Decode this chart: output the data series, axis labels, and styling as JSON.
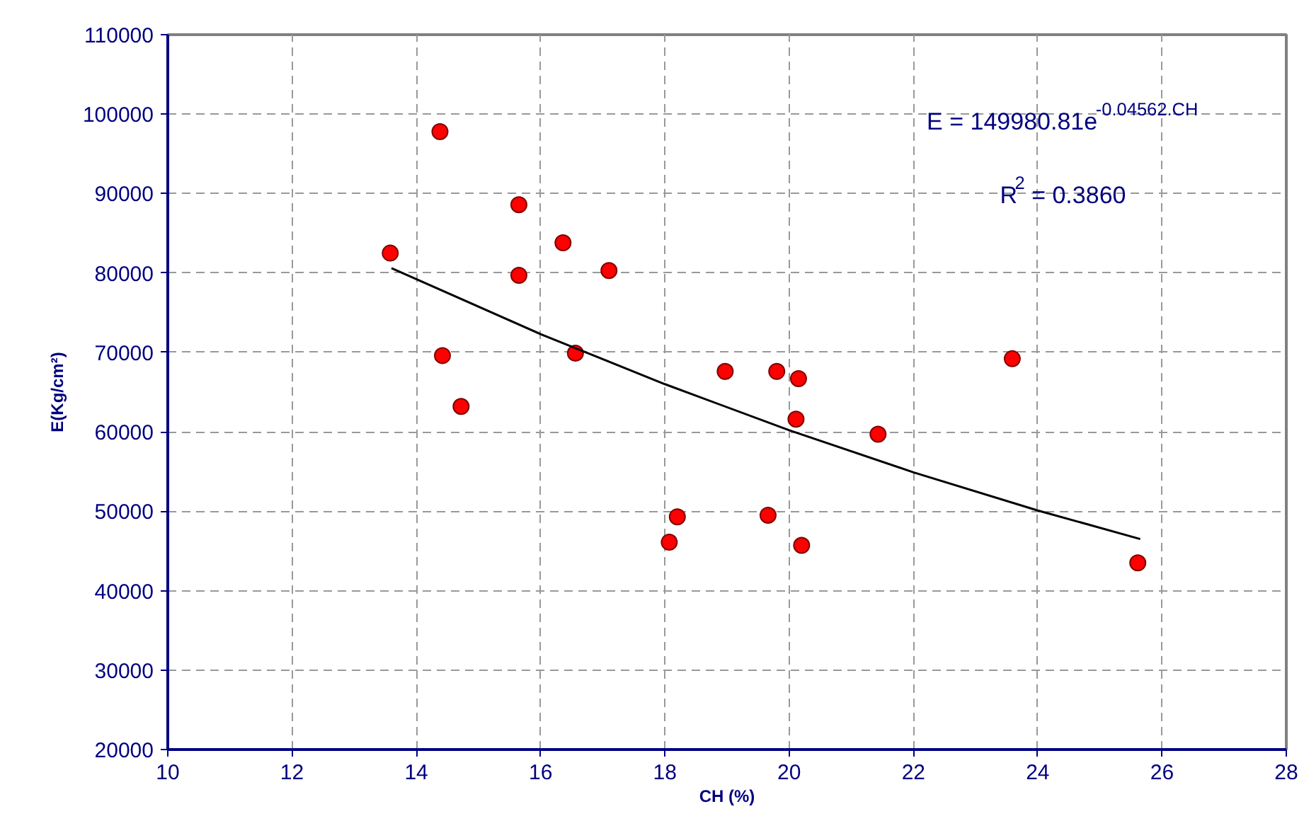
{
  "chart_data": {
    "type": "scatter",
    "xlabel": "CH (%)",
    "ylabel": "E(Kg/cm²)",
    "xlim": [
      10,
      28
    ],
    "ylim": [
      20000,
      110000
    ],
    "xticks": [
      10,
      12,
      14,
      16,
      18,
      20,
      22,
      24,
      26,
      28
    ],
    "yticks": [
      20000,
      30000,
      40000,
      50000,
      60000,
      70000,
      80000,
      90000,
      100000,
      110000
    ],
    "grid": true,
    "marker": "circle",
    "series": [
      {
        "color": "#ff0000",
        "x": [
          13.58,
          14.38,
          15.65,
          16.36,
          15.65,
          17.1,
          14.42,
          16.56,
          14.72,
          18.2,
          18.07,
          18.97,
          19.8,
          20.15,
          20.11,
          21.43,
          19.66,
          20.2,
          23.59,
          25.61
        ],
        "values": [
          82500,
          97800,
          88600,
          83800,
          79700,
          80300,
          69600,
          69900,
          63200,
          49300,
          46100,
          67600,
          67600,
          66700,
          61600,
          59700,
          49500,
          45700,
          69200,
          43500
        ]
      },
      {
        "type": "line",
        "color": "#000000",
        "line_style": "solid",
        "marker": "none",
        "x": [
          13.6,
          16,
          18,
          20,
          22,
          24,
          25.65
        ],
        "values": [
          80600,
          72300,
          66000,
          60200,
          54900,
          50100,
          46500
        ]
      }
    ],
    "annotations": [
      "E = 149980.81e$^{-0.04562.CH}$",
      "R$^{2}$ = 0.3860"
    ]
  }
}
